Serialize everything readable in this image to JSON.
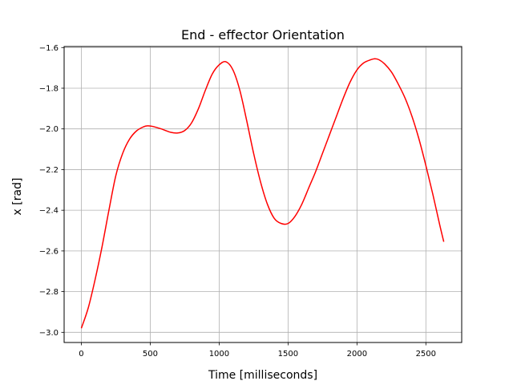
{
  "chart_data": {
    "type": "line",
    "title": "End - effector Orientation",
    "xlabel": "Time [milliseconds]",
    "ylabel": "x [rad]",
    "xlim": [
      -125,
      2760
    ],
    "ylim": [
      -3.05,
      -1.595
    ],
    "xticks": [
      0,
      500,
      1000,
      1500,
      2000,
      2500
    ],
    "yticks": [
      -3.0,
      -2.8,
      -2.6,
      -2.4,
      -2.2,
      -2.0,
      -1.8,
      -1.6
    ],
    "ytick_labels": [
      "−3.0",
      "−2.8",
      "−2.6",
      "−2.4",
      "−2.2",
      "−2.0",
      "−1.8",
      "−1.6"
    ],
    "grid": true,
    "series": [
      {
        "color": "#ff0000",
        "x": [
          0,
          50,
          100,
          150,
          200,
          250,
          300,
          350,
          400,
          450,
          480,
          520,
          580,
          650,
          700,
          750,
          800,
          850,
          900,
          950,
          1000,
          1050,
          1100,
          1150,
          1200,
          1250,
          1300,
          1350,
          1400,
          1450,
          1500,
          1550,
          1600,
          1650,
          1700,
          1750,
          1800,
          1850,
          1900,
          1950,
          2000,
          2050,
          2100,
          2130,
          2160,
          2200,
          2250,
          2300,
          2350,
          2400,
          2450,
          2500,
          2550,
          2600,
          2630
        ],
        "y": [
          -2.98,
          -2.88,
          -2.74,
          -2.58,
          -2.4,
          -2.23,
          -2.12,
          -2.05,
          -2.01,
          -1.99,
          -1.985,
          -1.988,
          -2.0,
          -2.017,
          -2.02,
          -2.008,
          -1.97,
          -1.9,
          -1.81,
          -1.73,
          -1.685,
          -1.67,
          -1.71,
          -1.81,
          -1.96,
          -2.12,
          -2.26,
          -2.37,
          -2.44,
          -2.465,
          -2.465,
          -2.43,
          -2.37,
          -2.29,
          -2.21,
          -2.12,
          -2.03,
          -1.94,
          -1.85,
          -1.77,
          -1.71,
          -1.675,
          -1.66,
          -1.655,
          -1.66,
          -1.68,
          -1.72,
          -1.78,
          -1.85,
          -1.94,
          -2.05,
          -2.18,
          -2.32,
          -2.47,
          -2.555
        ]
      }
    ]
  }
}
